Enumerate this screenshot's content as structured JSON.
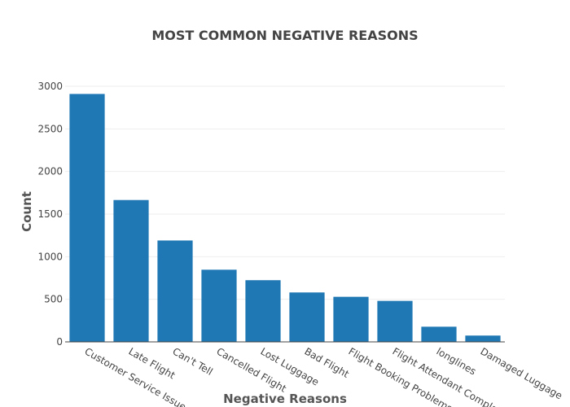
{
  "chart_data": {
    "type": "bar",
    "title": "MOST COMMON NEGATIVE REASONS",
    "xlabel": "Negative Reasons",
    "ylabel": "Count",
    "categories": [
      "Customer Service Issue",
      "Late Flight",
      "Can't Tell",
      "Cancelled Flight",
      "Lost Luggage",
      "Bad Flight",
      "Flight Booking Problems",
      "Flight Attendant Complaints",
      "longlines",
      "Damaged Luggage"
    ],
    "values": [
      2910,
      1665,
      1190,
      847,
      724,
      580,
      529,
      481,
      178,
      74
    ],
    "ylim": [
      0,
      3000
    ],
    "yticks": [
      0,
      500,
      1000,
      1500,
      2000,
      2500,
      3000
    ],
    "bar_color": "#1f77b4",
    "grid": true,
    "legend": "none"
  }
}
